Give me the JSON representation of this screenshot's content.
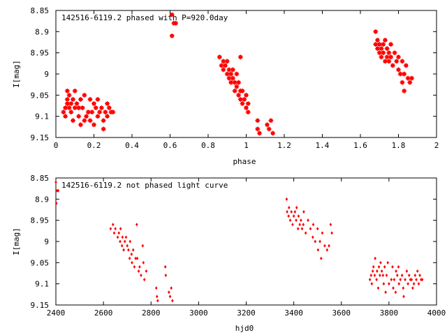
{
  "chart_data": [
    {
      "type": "scatter",
      "title": "142516-6119.2 phased with P=920.0day",
      "xlabel": "phase",
      "ylabel": "I[mag]",
      "xlim": [
        0,
        2
      ],
      "ylim": [
        8.85,
        9.15
      ],
      "y_inverted": true,
      "x_ticks": [
        "0",
        "0.2",
        "0.4",
        "0.6",
        "0.8",
        "1",
        "1.2",
        "1.4",
        "1.6",
        "1.8",
        "2"
      ],
      "y_ticks": [
        "8.85",
        "8.9",
        "8.95",
        "9",
        "9.05",
        "9.1",
        "9.15"
      ],
      "grid": false,
      "marker_color": "#ff0000",
      "marker": "filled-square-star",
      "series": [
        {
          "points": [
            [
              0.04,
              9.09
            ],
            [
              0.05,
              9.08
            ],
            [
              0.05,
              9.1
            ],
            [
              0.06,
              9.07
            ],
            [
              0.06,
              9.06
            ],
            [
              0.07,
              9.08
            ],
            [
              0.07,
              9.05
            ],
            [
              0.08,
              9.09
            ],
            [
              0.08,
              9.07
            ],
            [
              0.09,
              9.11
            ],
            [
              0.09,
              9.06
            ],
            [
              0.1,
              9.08
            ],
            [
              0.1,
              9.04
            ],
            [
              0.11,
              9.07
            ],
            [
              0.12,
              9.08
            ],
            [
              0.12,
              9.1
            ],
            [
              0.13,
              9.06
            ],
            [
              0.13,
              9.12
            ],
            [
              0.14,
              9.08
            ],
            [
              0.15,
              9.05
            ],
            [
              0.16,
              9.1
            ],
            [
              0.17,
              9.09
            ],
            [
              0.18,
              9.06
            ],
            [
              0.18,
              9.11
            ],
            [
              0.19,
              9.09
            ],
            [
              0.2,
              9.12
            ],
            [
              0.2,
              9.07
            ],
            [
              0.21,
              9.08
            ],
            [
              0.22,
              9.06
            ],
            [
              0.22,
              9.1
            ],
            [
              0.23,
              9.09
            ],
            [
              0.24,
              9.08
            ],
            [
              0.25,
              9.11
            ],
            [
              0.25,
              9.13
            ],
            [
              0.26,
              9.09
            ],
            [
              0.27,
              9.07
            ],
            [
              0.27,
              9.1
            ],
            [
              0.28,
              9.08
            ],
            [
              0.29,
              9.09
            ],
            [
              0.3,
              9.09
            ],
            [
              0.15,
              9.11
            ],
            [
              0.06,
              9.04
            ],
            [
              0.61,
              8.86
            ],
            [
              0.61,
              8.91
            ],
            [
              0.62,
              8.88
            ],
            [
              0.63,
              8.88
            ],
            [
              0.86,
              8.96
            ],
            [
              0.87,
              8.98
            ],
            [
              0.88,
              8.97
            ],
            [
              0.88,
              8.99
            ],
            [
              0.89,
              8.98
            ],
            [
              0.9,
              9.0
            ],
            [
              0.9,
              8.97
            ],
            [
              0.91,
              9.01
            ],
            [
              0.91,
              8.99
            ],
            [
              0.92,
              9.02
            ],
            [
              0.92,
              9.0
            ],
            [
              0.93,
              8.99
            ],
            [
              0.93,
              9.01
            ],
            [
              0.94,
              9.02
            ],
            [
              0.94,
              9.04
            ],
            [
              0.95,
              9.0
            ],
            [
              0.95,
              9.03
            ],
            [
              0.96,
              9.05
            ],
            [
              0.96,
              9.02
            ],
            [
              0.97,
              9.06
            ],
            [
              0.97,
              9.04
            ],
            [
              0.97,
              8.96
            ],
            [
              0.98,
              9.04
            ],
            [
              0.98,
              9.07
            ],
            [
              0.99,
              9.06
            ],
            [
              1.0,
              9.08
            ],
            [
              1.0,
              9.05
            ],
            [
              1.01,
              9.07
            ],
            [
              1.01,
              9.09
            ],
            [
              1.06,
              9.11
            ],
            [
              1.06,
              9.13
            ],
            [
              1.07,
              9.14
            ],
            [
              1.11,
              9.12
            ],
            [
              1.12,
              9.13
            ],
            [
              1.13,
              9.11
            ],
            [
              1.14,
              9.14
            ],
            [
              1.68,
              8.9
            ],
            [
              1.68,
              8.93
            ],
            [
              1.69,
              8.94
            ],
            [
              1.69,
              8.92
            ],
            [
              1.7,
              8.95
            ],
            [
              1.7,
              8.93
            ],
            [
              1.71,
              8.96
            ],
            [
              1.71,
              8.94
            ],
            [
              1.72,
              8.93
            ],
            [
              1.72,
              8.95
            ],
            [
              1.73,
              8.92
            ],
            [
              1.73,
              8.97
            ],
            [
              1.74,
              8.94
            ],
            [
              1.74,
              8.96
            ],
            [
              1.75,
              8.95
            ],
            [
              1.75,
              8.97
            ],
            [
              1.76,
              8.96
            ],
            [
              1.76,
              8.93
            ],
            [
              1.77,
              8.98
            ],
            [
              1.78,
              8.95
            ],
            [
              1.79,
              8.97
            ],
            [
              1.8,
              8.99
            ],
            [
              1.8,
              8.96
            ],
            [
              1.81,
              9.0
            ],
            [
              1.82,
              8.97
            ],
            [
              1.82,
              9.02
            ],
            [
              1.83,
              9.0
            ],
            [
              1.84,
              8.98
            ],
            [
              1.85,
              9.01
            ],
            [
              1.86,
              9.02
            ],
            [
              1.87,
              9.01
            ],
            [
              1.83,
              9.04
            ]
          ]
        }
      ]
    },
    {
      "type": "scatter",
      "title": "142516-6119.2 not phased light curve",
      "xlabel": "hjd0",
      "ylabel": "I[mag]",
      "xlim": [
        2400,
        4000
      ],
      "ylim": [
        8.85,
        9.15
      ],
      "y_inverted": true,
      "x_ticks": [
        "2400",
        "2600",
        "2800",
        "3000",
        "3200",
        "3400",
        "3600",
        "3800",
        "4000"
      ],
      "y_ticks": [
        "8.85",
        "8.9",
        "8.95",
        "9",
        "9.05",
        "9.1",
        "9.15"
      ],
      "grid": false,
      "marker_color": "#ff0000",
      "marker": "small-diamond",
      "series": [
        {
          "points": [
            [
              2400,
              8.86
            ],
            [
              2402,
              8.91
            ],
            [
              2405,
              8.88
            ],
            [
              2410,
              8.88
            ],
            [
              2630,
              8.97
            ],
            [
              2640,
              8.96
            ],
            [
              2645,
              8.98
            ],
            [
              2650,
              8.97
            ],
            [
              2660,
              8.99
            ],
            [
              2665,
              8.98
            ],
            [
              2670,
              9.0
            ],
            [
              2672,
              8.97
            ],
            [
              2678,
              9.01
            ],
            [
              2680,
              8.99
            ],
            [
              2685,
              9.02
            ],
            [
              2690,
              9.0
            ],
            [
              2695,
              8.99
            ],
            [
              2700,
              9.01
            ],
            [
              2705,
              9.02
            ],
            [
              2710,
              9.04
            ],
            [
              2712,
              9.0
            ],
            [
              2718,
              9.03
            ],
            [
              2720,
              9.05
            ],
            [
              2725,
              9.02
            ],
            [
              2730,
              9.06
            ],
            [
              2735,
              9.04
            ],
            [
              2740,
              8.96
            ],
            [
              2742,
              9.04
            ],
            [
              2748,
              9.07
            ],
            [
              2752,
              9.06
            ],
            [
              2758,
              9.08
            ],
            [
              2765,
              9.01
            ],
            [
              2768,
              9.05
            ],
            [
              2772,
              9.09
            ],
            [
              2780,
              9.07
            ],
            [
              2822,
              9.11
            ],
            [
              2825,
              9.13
            ],
            [
              2828,
              9.14
            ],
            [
              2860,
              9.06
            ],
            [
              2862,
              9.08
            ],
            [
              2875,
              9.12
            ],
            [
              2880,
              9.13
            ],
            [
              2885,
              9.11
            ],
            [
              2890,
              9.14
            ],
            [
              3370,
              8.9
            ],
            [
              3372,
              8.93
            ],
            [
              3378,
              8.94
            ],
            [
              3380,
              8.92
            ],
            [
              3385,
              8.95
            ],
            [
              3390,
              8.93
            ],
            [
              3395,
              8.96
            ],
            [
              3400,
              8.94
            ],
            [
              3405,
              8.93
            ],
            [
              3410,
              8.95
            ],
            [
              3412,
              8.92
            ],
            [
              3418,
              8.97
            ],
            [
              3420,
              8.94
            ],
            [
              3425,
              8.96
            ],
            [
              3430,
              8.95
            ],
            [
              3435,
              8.97
            ],
            [
              3440,
              8.96
            ],
            [
              3442,
              8.93
            ],
            [
              3450,
              8.98
            ],
            [
              3460,
              8.95
            ],
            [
              3470,
              8.97
            ],
            [
              3480,
              8.99
            ],
            [
              3482,
              8.96
            ],
            [
              3490,
              9.0
            ],
            [
              3500,
              8.97
            ],
            [
              3502,
              9.02
            ],
            [
              3510,
              9.0
            ],
            [
              3520,
              8.98
            ],
            [
              3530,
              9.01
            ],
            [
              3540,
              9.02
            ],
            [
              3548,
              9.01
            ],
            [
              3515,
              9.04
            ],
            [
              3560,
              8.98
            ],
            [
              3555,
              8.96
            ],
            [
              3720,
              9.09
            ],
            [
              3725,
              9.08
            ],
            [
              3728,
              9.1
            ],
            [
              3732,
              9.07
            ],
            [
              3735,
              9.06
            ],
            [
              3740,
              9.08
            ],
            [
              3742,
              9.04
            ],
            [
              3748,
              9.09
            ],
            [
              3750,
              9.07
            ],
            [
              3755,
              9.11
            ],
            [
              3758,
              9.06
            ],
            [
              3762,
              9.08
            ],
            [
              3765,
              9.05
            ],
            [
              3770,
              9.07
            ],
            [
              3775,
              9.08
            ],
            [
              3778,
              9.1
            ],
            [
              3782,
              9.06
            ],
            [
              3786,
              9.12
            ],
            [
              3790,
              9.08
            ],
            [
              3795,
              9.05
            ],
            [
              3800,
              9.1
            ],
            [
              3810,
              9.09
            ],
            [
              3815,
              9.06
            ],
            [
              3818,
              9.11
            ],
            [
              3822,
              9.09
            ],
            [
              3828,
              9.12
            ],
            [
              3830,
              9.07
            ],
            [
              3835,
              9.08
            ],
            [
              3840,
              9.06
            ],
            [
              3842,
              9.1
            ],
            [
              3848,
              9.09
            ],
            [
              3855,
              9.08
            ],
            [
              3860,
              9.11
            ],
            [
              3862,
              9.13
            ],
            [
              3868,
              9.09
            ],
            [
              3875,
              9.07
            ],
            [
              3880,
              9.1
            ],
            [
              3885,
              9.08
            ],
            [
              3890,
              9.09
            ],
            [
              3895,
              9.09
            ],
            [
              3900,
              9.11
            ],
            [
              3905,
              9.1
            ],
            [
              3910,
              9.08
            ],
            [
              3915,
              9.09
            ],
            [
              3920,
              9.07
            ],
            [
              3925,
              9.1
            ],
            [
              3930,
              9.08
            ],
            [
              3935,
              9.09
            ],
            [
              3940,
              9.09
            ]
          ]
        }
      ]
    }
  ]
}
